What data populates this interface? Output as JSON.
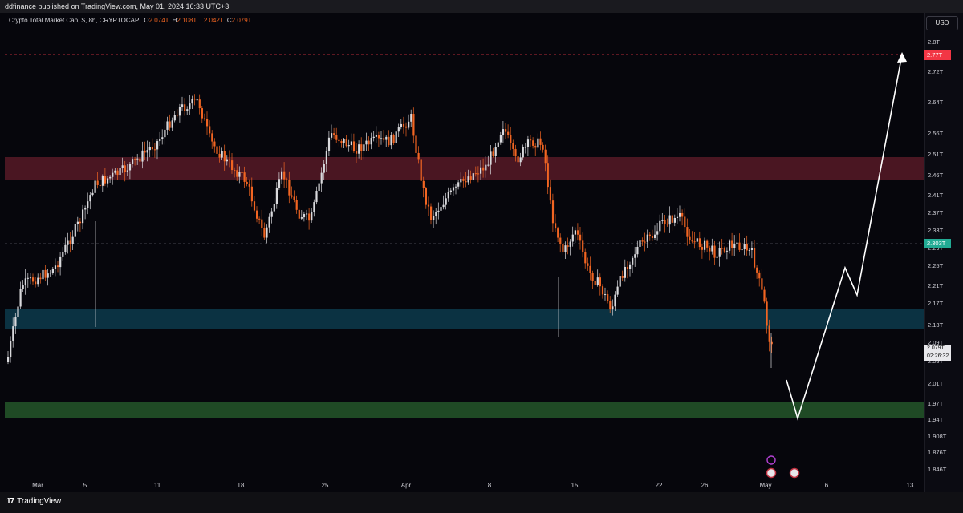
{
  "publisher_line": "ddfinance published on TradingView.com, May 01, 2024 16:33 UTC+3",
  "legend": {
    "title": "Crypto Total Market Cap, $, 8h, CRYPTOCAP",
    "o_label": "O",
    "o": "2.074T",
    "h_label": "H",
    "h": "2.108T",
    "l_label": "L",
    "l": "2.042T",
    "c_label": "C",
    "c": "2.079T"
  },
  "currency": "USD",
  "price_axis": [
    "2.8T",
    "2.72T",
    "2.64T",
    "2.56T",
    "2.51T",
    "2.46T",
    "2.41T",
    "2.37T",
    "2.33T",
    "2.29T",
    "2.25T",
    "2.21T",
    "2.17T",
    "2.13T",
    "2.09T",
    "2.05T",
    "2.01T",
    "1.97T",
    "1.94T",
    "1.908T",
    "1.876T",
    "1.846T"
  ],
  "time_axis": [
    "Mar",
    "5",
    "11",
    "18",
    "25",
    "Apr",
    "8",
    "15",
    "22",
    "26",
    "May",
    "6",
    "13"
  ],
  "price_tags": {
    "target": {
      "text": "2.77T",
      "color": "#f23645"
    },
    "level": {
      "text": "2.303T",
      "color": "#22ab94"
    },
    "current": {
      "text": "2.079T",
      "countdown": "02:26:32"
    }
  },
  "zones": [
    {
      "name": "resistance",
      "color": "#4a1622"
    },
    {
      "name": "support",
      "color": "#0b3242"
    },
    {
      "name": "target-support",
      "color": "#1f4a25"
    }
  ],
  "colors": {
    "up": "#d9d9dd",
    "down": "#f26522",
    "background": "#06060c"
  },
  "branding": "TradingView",
  "icons": [
    "lightning-event-icon",
    "us-flag-event-icon",
    "us-flag-event-icon"
  ]
}
